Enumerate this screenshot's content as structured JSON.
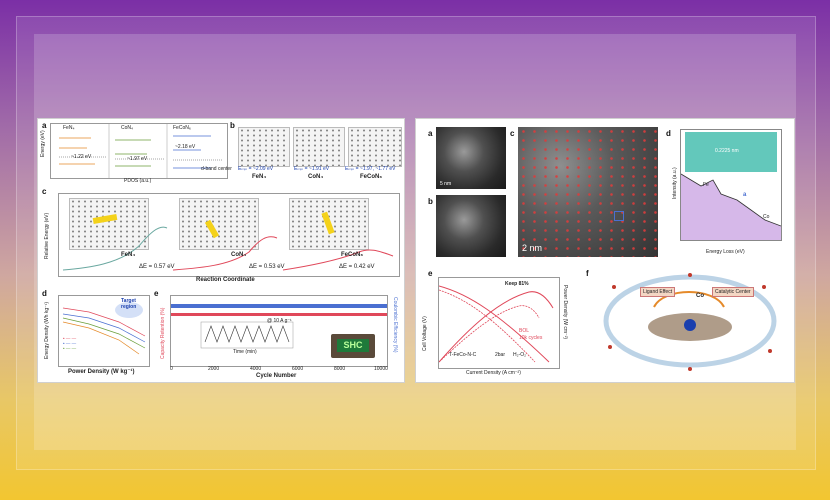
{
  "left": {
    "a": {
      "label": "a",
      "cols": [
        "FeN₄",
        "CoN₄",
        "FeCoN₆"
      ],
      "values": [
        "~1.22 eV",
        "~1.97 eV",
        "~2.18 eV"
      ],
      "ylabel": "Energy (eV)",
      "xlabel": "PDOS (a.u.)",
      "note": "d-band center"
    },
    "b": {
      "label": "b",
      "items": [
        {
          "name": "FeN₄",
          "eb": "Eₘᵢₙ = ~2.09 eV"
        },
        {
          "name": "CoN₄",
          "eb": "Eₘᵢₙ = ~1.91 eV"
        },
        {
          "name": "FeCoN₆",
          "eb": "Eₘᵢₙ = ~1.97, ~1.77 eV"
        }
      ]
    },
    "c": {
      "label": "c",
      "ylabel": "Relative Energy (eV)",
      "xlabel": "Reaction Coordinate",
      "items": [
        {
          "name": "FeN₄",
          "de": "ΔE = 0.57 eV"
        },
        {
          "name": "CoN₄",
          "de": "ΔE = 0.53 eV"
        },
        {
          "name": "FeCoN₆",
          "de": "ΔE = 0.42 eV"
        }
      ]
    },
    "d": {
      "label": "d",
      "ylabel": "Energy Density (Wh kg⁻¹)",
      "xlabel": "Power Density (W kg⁻¹)",
      "target": "Target region"
    },
    "e": {
      "label": "e",
      "ylabel_left": "Capacity Retention (%)",
      "ylabel_right": "Coulombic Efficiency (%)",
      "xlabel": "Cycle Number",
      "rate": "@ 10 A g⁻¹",
      "x_ticks": [
        "0",
        "2000",
        "4000",
        "6000",
        "8000",
        "10000"
      ],
      "inset_xlabel": "Time (min)",
      "inset_ylabel": "Voltage (V)",
      "device_text": "SHC"
    }
  },
  "right": {
    "a": {
      "label": "a",
      "scale": "5 nm"
    },
    "b": {
      "label": "b"
    },
    "c": {
      "label": "c",
      "scale": "2 nm"
    },
    "d": {
      "label": "d",
      "value": "0.2225 nm",
      "ylabel": "Intensity (a.u.)",
      "xlabel": "Energy Loss (eV)",
      "fe": "Fe",
      "co": "Co",
      "a_mark": "a",
      "x_ticks": [
        "660",
        "675",
        "690",
        "705",
        "720",
        "735",
        "750",
        "765",
        "780",
        "795"
      ]
    },
    "e": {
      "label": "e",
      "keep": "Keep 81%",
      "ylabel_left": "Cell Voltage (V)",
      "ylabel_right": "Power Density (W cm⁻²)",
      "xlabel": "Current Density (A cm⁻²)",
      "sample": "T-FeCo-N-C",
      "cond1": "2bar",
      "cond2": "H₂-O₂",
      "leg1": "BOL",
      "leg2": "10k cycles"
    },
    "f": {
      "label": "f",
      "box1": "Ligand Effect",
      "box2": "Catalytic Center",
      "co": "Co"
    }
  },
  "colors": {
    "accent_red": "#e0485a",
    "accent_blue": "#4a6fd1",
    "accent_purple": "#8a3fc4",
    "teal": "#2fb5a4"
  }
}
